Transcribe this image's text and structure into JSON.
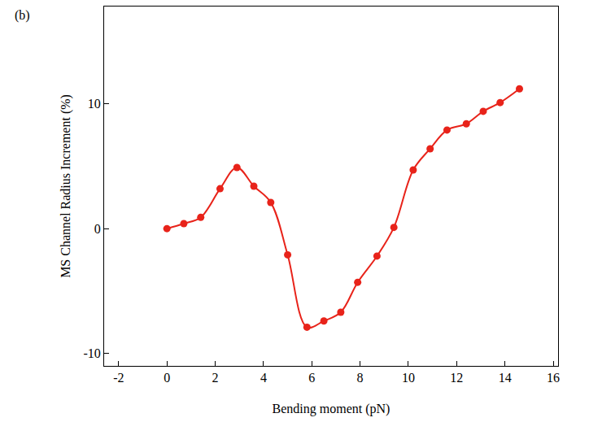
{
  "chart_data": {
    "type": "line",
    "annotations": [
      "(b)"
    ],
    "x_label": "Bending moment (pN)",
    "y_label": "MS Channel Radius Increment (%)",
    "x": [
      0,
      0.7,
      1.4,
      2.2,
      2.9,
      3.6,
      4.3,
      5.0,
      5.8,
      6.5,
      7.2,
      7.9,
      8.7,
      9.4,
      10.2,
      10.9,
      11.6,
      12.4,
      13.1,
      13.8,
      14.6
    ],
    "values": [
      0,
      0.4,
      0.9,
      3.2,
      4.9,
      3.4,
      2.1,
      -2.1,
      -7.9,
      -7.4,
      -6.7,
      -4.3,
      -2.2,
      0.1,
      4.7,
      6.4,
      7.9,
      8.4,
      9.4,
      10.1,
      11.2
    ],
    "color": "#e8231a",
    "marker": "circle",
    "line_style": "smooth",
    "xlim": [
      -2.6,
      16.2
    ],
    "xticks": [
      -2,
      0,
      2,
      4,
      6,
      8,
      10,
      12,
      14,
      16
    ],
    "ylim": [
      -11,
      17.8
    ],
    "yticks": [
      -10,
      0,
      10
    ],
    "grid": false
  }
}
